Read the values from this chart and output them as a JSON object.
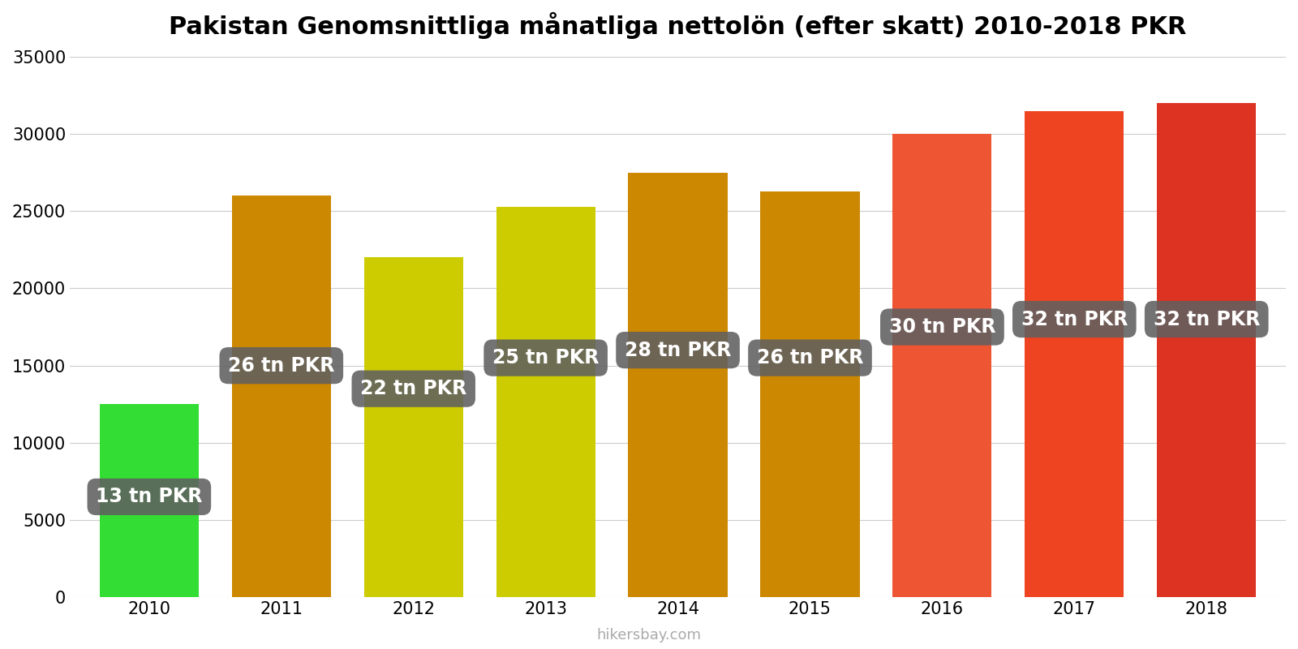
{
  "title": "Pakistan Genomsnittliga månatliga nettolön (efter skatt) 2010-2018 PKR",
  "years": [
    2010,
    2011,
    2012,
    2013,
    2014,
    2015,
    2016,
    2017,
    2018
  ],
  "values": [
    12500,
    26000,
    22000,
    25300,
    27500,
    26300,
    30000,
    31500,
    32000
  ],
  "labels": [
    "13 tn PKR",
    "26 tn PKR",
    "22 tn PKR",
    "25 tn PKR",
    "28 tn PKR",
    "26 tn PKR",
    "30 tn PKR",
    "32 tn PKR",
    "32 tn PKR"
  ],
  "bar_colors": [
    "#33dd33",
    "#cc8800",
    "#cccc00",
    "#cccc00",
    "#cc8800",
    "#cc8800",
    "#ee5533",
    "#ee4422",
    "#dd3322"
  ],
  "ylim": [
    0,
    35000
  ],
  "yticks": [
    0,
    5000,
    10000,
    15000,
    20000,
    25000,
    30000,
    35000
  ],
  "label_y_positions": [
    6500,
    15000,
    13500,
    15500,
    16000,
    15500,
    17500,
    18000,
    18000
  ],
  "label_bg_color": "#606060",
  "label_text_color": "#ffffff",
  "label_fontsize": 17,
  "title_fontsize": 22,
  "tick_fontsize": 15,
  "watermark": "hikersbay.com",
  "background_color": "#ffffff",
  "bar_width": 0.75
}
